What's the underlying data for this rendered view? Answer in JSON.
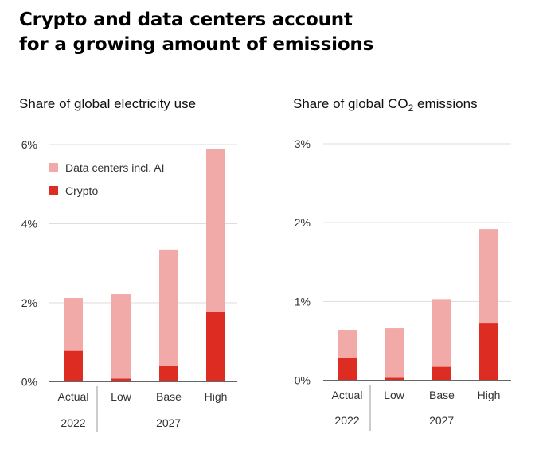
{
  "title_lines": [
    "Crypto and data centers account",
    "for a growing amount of emissions"
  ],
  "colors": {
    "data_centers": "#f2aaa8",
    "crypto": "#dd2c22",
    "grid": "#dedede",
    "axis": "#666666"
  },
  "chart_data": [
    {
      "type": "bar",
      "stacked": true,
      "title": "Share of global electricity use",
      "categories": [
        "Actual",
        "Low",
        "Base",
        "High"
      ],
      "category_groups": [
        {
          "label": "2022",
          "categories": [
            "Actual"
          ]
        },
        {
          "label": "2027",
          "categories": [
            "Low",
            "Base",
            "High"
          ]
        }
      ],
      "y_ticks": [
        "0%",
        "2%",
        "4%",
        "6%"
      ],
      "ylim": [
        0,
        6
      ],
      "unit": "%",
      "legend": {
        "placement": "top-left",
        "entries": [
          "Data centers incl. AI",
          "Crypto"
        ]
      },
      "series": [
        {
          "name": "Crypto",
          "values": [
            0.78,
            0.08,
            0.4,
            1.76
          ]
        },
        {
          "name": "Data centers incl. AI",
          "values": [
            1.34,
            2.14,
            2.95,
            4.13
          ]
        }
      ]
    },
    {
      "type": "bar",
      "stacked": true,
      "title": "Share of global CO",
      "title_subscript": "2",
      "title_suffix": " emissions",
      "categories": [
        "Actual",
        "Low",
        "Base",
        "High"
      ],
      "category_groups": [
        {
          "label": "2022",
          "categories": [
            "Actual"
          ]
        },
        {
          "label": "2027",
          "categories": [
            "Low",
            "Base",
            "High"
          ]
        }
      ],
      "y_ticks": [
        "0%",
        "1%",
        "2%",
        "3%"
      ],
      "ylim": [
        0,
        3
      ],
      "unit": "%",
      "series": [
        {
          "name": "Crypto",
          "values": [
            0.28,
            0.03,
            0.17,
            0.72
          ]
        },
        {
          "name": "Data centers incl. AI",
          "values": [
            0.36,
            0.63,
            0.86,
            1.2
          ]
        }
      ]
    }
  ]
}
